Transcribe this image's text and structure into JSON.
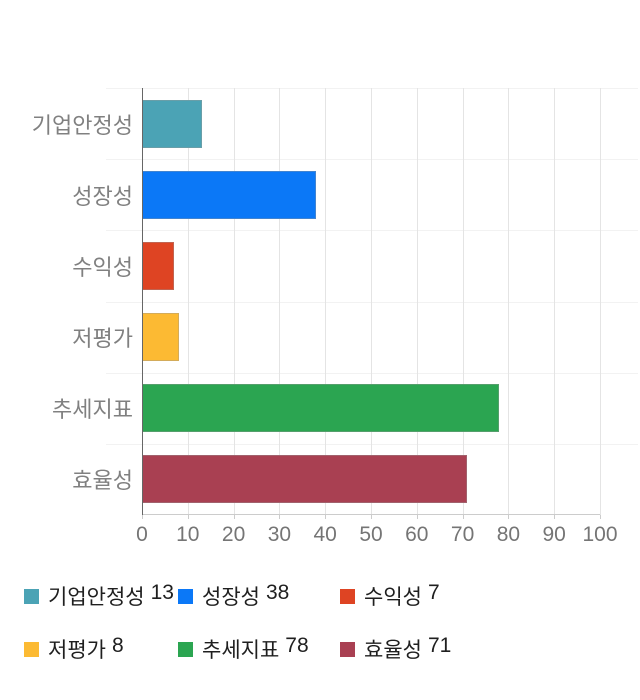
{
  "chart_data": {
    "type": "bar",
    "orientation": "horizontal",
    "title": "",
    "categories": [
      "기업안정성",
      "성장성",
      "수익성",
      "저평가",
      "추세지표",
      "효율성"
    ],
    "values": [
      13,
      38,
      7,
      8,
      78,
      71
    ],
    "colors": [
      "#4BA3B5",
      "#0B78F7",
      "#DE4423",
      "#FCBA33",
      "#2BA551",
      "#A94052"
    ],
    "xlim": [
      0,
      100
    ],
    "xticks": [
      0,
      10,
      20,
      30,
      40,
      50,
      60,
      70,
      80,
      90,
      100
    ],
    "grid": true,
    "legend_position": "bottom"
  },
  "legend": {
    "items": [
      {
        "label": "기업안정성",
        "value": "13"
      },
      {
        "label": "성장성",
        "value": "38"
      },
      {
        "label": "수익성",
        "value": "7"
      },
      {
        "label": "저평가",
        "value": "8"
      },
      {
        "label": "추세지표",
        "value": "78"
      },
      {
        "label": "효율성",
        "value": "71"
      }
    ]
  },
  "ui_colors": {
    "background": "#ffffff",
    "axis_line": "#666666",
    "gridline": "#e4e4e4",
    "row_separator": "#f2f2f2",
    "baseline": "#cccccc",
    "tick_text": "#757575",
    "category_label_text": "#808080",
    "legend_text": "#1f1f1f"
  }
}
